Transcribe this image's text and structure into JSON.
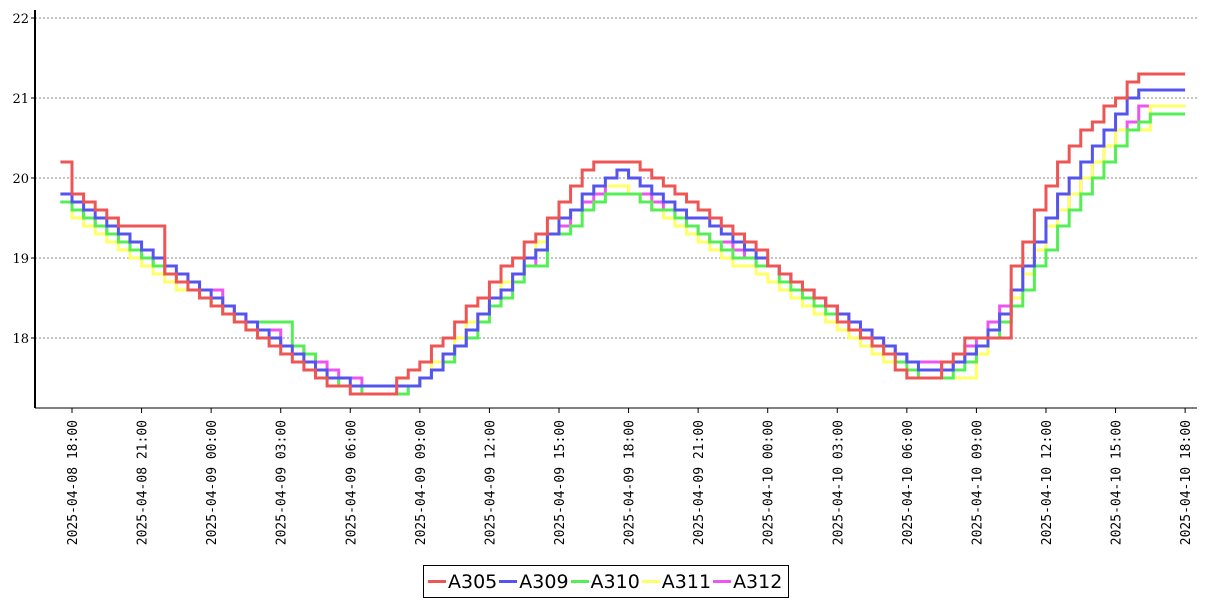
{
  "chart_data": {
    "type": "line",
    "step": true,
    "title": "",
    "xlabel": "",
    "ylabel": "",
    "ylim": [
      17.1,
      22.2
    ],
    "yticks": [
      18,
      19,
      20,
      21,
      22
    ],
    "xticks": [
      "2025-04-08 18:00",
      "2025-04-08 21:00",
      "2025-04-09 00:00",
      "2025-04-09 03:00",
      "2025-04-09 06:00",
      "2025-04-09 09:00",
      "2025-04-09 12:00",
      "2025-04-09 15:00",
      "2025-04-09 18:00",
      "2025-04-09 21:00",
      "2025-04-10 00:00",
      "2025-04-10 03:00",
      "2025-04-10 06:00",
      "2025-04-10 09:00",
      "2025-04-10 12:00",
      "2025-04-10 15:00",
      "2025-04-10 18:00"
    ],
    "grid": "horizontal dotted",
    "legend_position": "bottom-center",
    "x": [
      "2025-04-08 17:30",
      "2025-04-08 18:00",
      "2025-04-08 18:30",
      "2025-04-08 19:00",
      "2025-04-08 19:30",
      "2025-04-08 20:00",
      "2025-04-08 20:30",
      "2025-04-08 21:00",
      "2025-04-08 21:30",
      "2025-04-08 22:00",
      "2025-04-08 22:30",
      "2025-04-08 23:00",
      "2025-04-08 23:30",
      "2025-04-09 00:00",
      "2025-04-09 00:30",
      "2025-04-09 01:00",
      "2025-04-09 01:30",
      "2025-04-09 02:00",
      "2025-04-09 02:30",
      "2025-04-09 03:00",
      "2025-04-09 03:30",
      "2025-04-09 04:00",
      "2025-04-09 04:30",
      "2025-04-09 05:00",
      "2025-04-09 05:30",
      "2025-04-09 06:00",
      "2025-04-09 06:30",
      "2025-04-09 07:00",
      "2025-04-09 07:30",
      "2025-04-09 08:00",
      "2025-04-09 08:30",
      "2025-04-09 09:00",
      "2025-04-09 09:30",
      "2025-04-09 10:00",
      "2025-04-09 10:30",
      "2025-04-09 11:00",
      "2025-04-09 11:30",
      "2025-04-09 12:00",
      "2025-04-09 12:30",
      "2025-04-09 13:00",
      "2025-04-09 13:30",
      "2025-04-09 14:00",
      "2025-04-09 14:30",
      "2025-04-09 15:00",
      "2025-04-09 15:30",
      "2025-04-09 16:00",
      "2025-04-09 16:30",
      "2025-04-09 17:00",
      "2025-04-09 17:30",
      "2025-04-09 18:00",
      "2025-04-09 18:30",
      "2025-04-09 19:00",
      "2025-04-09 19:30",
      "2025-04-09 20:00",
      "2025-04-09 20:30",
      "2025-04-09 21:00",
      "2025-04-09 21:30",
      "2025-04-09 22:00",
      "2025-04-09 22:30",
      "2025-04-09 23:00",
      "2025-04-09 23:30",
      "2025-04-10 00:00",
      "2025-04-10 00:30",
      "2025-04-10 01:00",
      "2025-04-10 01:30",
      "2025-04-10 02:00",
      "2025-04-10 02:30",
      "2025-04-10 03:00",
      "2025-04-10 03:30",
      "2025-04-10 04:00",
      "2025-04-10 04:30",
      "2025-04-10 05:00",
      "2025-04-10 05:30",
      "2025-04-10 06:00",
      "2025-04-10 06:30",
      "2025-04-10 07:00",
      "2025-04-10 07:30",
      "2025-04-10 08:00",
      "2025-04-10 08:30",
      "2025-04-10 09:00",
      "2025-04-10 09:30",
      "2025-04-10 10:00",
      "2025-04-10 10:30",
      "2025-04-10 11:00",
      "2025-04-10 11:30",
      "2025-04-10 12:00",
      "2025-04-10 12:30",
      "2025-04-10 13:00",
      "2025-04-10 13:30",
      "2025-04-10 14:00",
      "2025-04-10 14:30",
      "2025-04-10 15:00",
      "2025-04-10 15:30",
      "2025-04-10 16:00",
      "2025-04-10 16:30",
      "2025-04-10 17:00",
      "2025-04-10 17:30"
    ],
    "series": [
      {
        "name": "A305",
        "color": "#ee5555",
        "values": [
          20.2,
          19.8,
          19.7,
          19.6,
          19.5,
          19.4,
          19.4,
          19.4,
          19.4,
          18.8,
          18.7,
          18.6,
          18.5,
          18.4,
          18.3,
          18.2,
          18.1,
          18.0,
          17.9,
          17.8,
          17.7,
          17.6,
          17.5,
          17.4,
          17.4,
          17.3,
          17.3,
          17.3,
          17.3,
          17.5,
          17.6,
          17.7,
          17.9,
          18.0,
          18.2,
          18.4,
          18.5,
          18.7,
          18.9,
          19.0,
          19.2,
          19.3,
          19.5,
          19.7,
          19.9,
          20.1,
          20.2,
          20.2,
          20.2,
          20.2,
          20.1,
          20.0,
          19.9,
          19.8,
          19.7,
          19.6,
          19.5,
          19.4,
          19.3,
          19.2,
          19.1,
          18.9,
          18.8,
          18.7,
          18.6,
          18.5,
          18.4,
          18.2,
          18.1,
          18.0,
          17.9,
          17.8,
          17.6,
          17.5,
          17.5,
          17.5,
          17.7,
          17.8,
          18.0,
          18.0,
          18.0,
          18.0,
          18.9,
          19.2,
          19.6,
          19.9,
          20.2,
          20.4,
          20.6,
          20.7,
          20.9,
          21.0,
          21.2,
          21.3,
          21.3,
          21.3,
          21.3
        ]
      },
      {
        "name": "A309",
        "color": "#5555ee",
        "values": [
          19.8,
          19.7,
          19.6,
          19.5,
          19.4,
          19.3,
          19.2,
          19.1,
          19.0,
          18.9,
          18.8,
          18.7,
          18.6,
          18.5,
          18.4,
          18.3,
          18.2,
          18.1,
          18.0,
          17.9,
          17.8,
          17.7,
          17.6,
          17.5,
          17.5,
          17.4,
          17.4,
          17.4,
          17.4,
          17.4,
          17.4,
          17.5,
          17.6,
          17.8,
          17.9,
          18.1,
          18.3,
          18.5,
          18.6,
          18.8,
          19.0,
          19.1,
          19.3,
          19.5,
          19.6,
          19.8,
          19.9,
          20.0,
          20.1,
          20.0,
          19.9,
          19.8,
          19.7,
          19.6,
          19.5,
          19.5,
          19.4,
          19.3,
          19.2,
          19.1,
          19.0,
          18.9,
          18.8,
          18.7,
          18.6,
          18.5,
          18.4,
          18.3,
          18.2,
          18.1,
          18.0,
          17.9,
          17.8,
          17.7,
          17.6,
          17.6,
          17.6,
          17.7,
          17.8,
          17.9,
          18.1,
          18.3,
          18.6,
          18.9,
          19.2,
          19.5,
          19.8,
          20.0,
          20.2,
          20.4,
          20.6,
          20.8,
          21.0,
          21.1,
          21.1,
          21.1,
          21.1
        ]
      },
      {
        "name": "A310",
        "color": "#55ee55",
        "values": [
          19.7,
          19.6,
          19.5,
          19.4,
          19.3,
          19.2,
          19.1,
          19.0,
          18.9,
          18.8,
          18.7,
          18.6,
          18.5,
          18.4,
          18.3,
          18.2,
          18.2,
          18.2,
          18.2,
          18.2,
          17.9,
          17.8,
          17.6,
          17.5,
          17.4,
          17.4,
          17.3,
          17.3,
          17.3,
          17.3,
          17.4,
          17.5,
          17.6,
          17.7,
          17.9,
          18.0,
          18.2,
          18.4,
          18.5,
          18.7,
          18.9,
          18.9,
          19.3,
          19.3,
          19.4,
          19.6,
          19.7,
          19.8,
          19.8,
          19.8,
          19.7,
          19.6,
          19.6,
          19.5,
          19.4,
          19.3,
          19.2,
          19.1,
          19.0,
          19.0,
          18.9,
          18.9,
          18.7,
          18.6,
          18.5,
          18.4,
          18.3,
          18.2,
          18.1,
          18.0,
          17.9,
          17.8,
          17.7,
          17.6,
          17.5,
          17.5,
          17.5,
          17.6,
          17.7,
          17.9,
          18.0,
          18.2,
          18.4,
          18.6,
          18.9,
          19.1,
          19.4,
          19.6,
          19.8,
          20.0,
          20.2,
          20.4,
          20.6,
          20.7,
          20.8,
          20.8,
          20.8
        ]
      },
      {
        "name": "A311",
        "color": "#ffff66",
        "values": [
          19.7,
          19.5,
          19.4,
          19.3,
          19.2,
          19.1,
          19.0,
          18.9,
          18.8,
          18.7,
          18.6,
          18.6,
          18.5,
          18.4,
          18.3,
          18.2,
          18.1,
          18.0,
          17.9,
          17.8,
          17.8,
          17.7,
          17.6,
          17.5,
          17.4,
          17.4,
          17.4,
          17.4,
          17.4,
          17.4,
          17.4,
          17.5,
          17.7,
          17.8,
          18.0,
          18.2,
          18.3,
          18.5,
          18.7,
          18.8,
          19.0,
          19.2,
          19.3,
          19.5,
          19.6,
          19.8,
          19.9,
          19.9,
          19.9,
          19.8,
          19.7,
          19.6,
          19.5,
          19.4,
          19.3,
          19.2,
          19.1,
          19.0,
          18.9,
          18.9,
          18.8,
          18.7,
          18.6,
          18.5,
          18.4,
          18.3,
          18.2,
          18.1,
          18.0,
          17.9,
          17.8,
          17.7,
          17.6,
          17.6,
          17.5,
          17.5,
          17.5,
          17.5,
          17.5,
          17.8,
          18.0,
          18.2,
          18.5,
          18.8,
          19.1,
          19.4,
          19.6,
          19.8,
          20.0,
          20.2,
          20.4,
          20.6,
          20.6,
          20.6,
          20.9,
          20.9,
          20.9
        ]
      },
      {
        "name": "A312",
        "color": "#ee55ee",
        "values": [
          19.7,
          19.6,
          19.5,
          19.4,
          19.3,
          19.2,
          19.1,
          19.0,
          18.9,
          18.8,
          18.8,
          18.7,
          18.6,
          18.6,
          18.4,
          18.3,
          18.2,
          18.1,
          18.1,
          17.9,
          17.9,
          17.8,
          17.7,
          17.6,
          17.5,
          17.5,
          17.4,
          17.4,
          17.4,
          17.4,
          17.4,
          17.5,
          17.6,
          17.7,
          17.9,
          18.1,
          18.3,
          18.4,
          18.6,
          18.8,
          18.9,
          19.1,
          19.3,
          19.4,
          19.6,
          19.7,
          19.8,
          19.9,
          19.9,
          19.8,
          19.8,
          19.7,
          19.6,
          19.5,
          19.4,
          19.3,
          19.2,
          19.2,
          19.1,
          19.0,
          18.9,
          18.9,
          18.8,
          18.7,
          18.6,
          18.5,
          18.4,
          18.3,
          18.2,
          18.1,
          18.0,
          17.9,
          17.8,
          17.7,
          17.7,
          17.7,
          17.6,
          17.7,
          17.9,
          18.0,
          18.2,
          18.4,
          18.6,
          18.9,
          19.1,
          19.4,
          19.6,
          19.8,
          20.0,
          20.2,
          20.4,
          20.6,
          20.7,
          20.9,
          20.9,
          20.9,
          20.9
        ]
      }
    ]
  }
}
